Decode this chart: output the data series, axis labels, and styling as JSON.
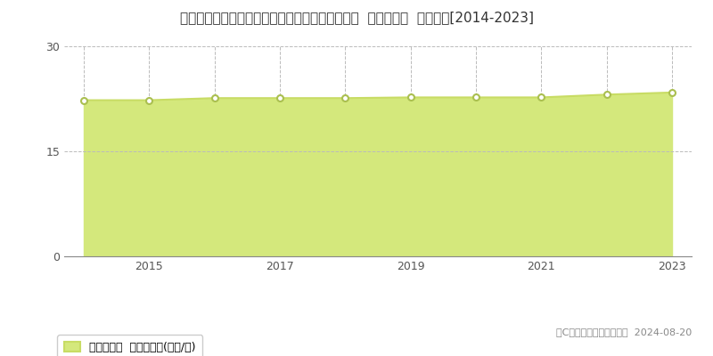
{
  "title": "愛知県愛知郡東郷町大字諸輪字観音畑６０番１外  基準地価格  地価推移[2014-2023]",
  "years": [
    2014,
    2015,
    2016,
    2017,
    2018,
    2019,
    2020,
    2021,
    2022,
    2023
  ],
  "values": [
    22.3,
    22.3,
    22.6,
    22.6,
    22.6,
    22.7,
    22.7,
    22.7,
    23.1,
    23.4
  ],
  "ylim": [
    0,
    30
  ],
  "yticks": [
    0,
    15,
    30
  ],
  "xtick_years": [
    2015,
    2017,
    2019,
    2021,
    2023
  ],
  "line_color": "#c8dc64",
  "fill_color": "#d4e87c",
  "marker_facecolor": "#ffffff",
  "marker_edgecolor": "#aabf50",
  "grid_color": "#bbbbbb",
  "background_color": "#ffffff",
  "legend_label": "基準地価格  平均坪単価(万円/坪)",
  "copyright_text": "（C）土地価格ドットコム  2024-08-20",
  "title_fontsize": 11,
  "axis_fontsize": 9,
  "legend_fontsize": 9,
  "copyright_fontsize": 8
}
